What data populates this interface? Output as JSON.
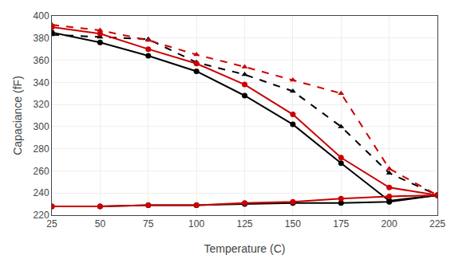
{
  "chart_data": {
    "type": "line",
    "xlabel": "Temperature (C)",
    "ylabel": "Capaciance (fF)",
    "x": [
      25,
      50,
      75,
      100,
      125,
      150,
      175,
      200,
      225
    ],
    "series": [
      {
        "color": "#000000",
        "line_style": "solid",
        "marker": "circle",
        "values": [
          385,
          376,
          364,
          350,
          328,
          302,
          267,
          233,
          238
        ]
      },
      {
        "color": "#000000",
        "line_style": "dashed",
        "marker": "triangle",
        "values": [
          383,
          381,
          379,
          358,
          347,
          332,
          300,
          258,
          238
        ]
      },
      {
        "color": "#cc0000",
        "line_style": "solid",
        "marker": "circle",
        "values": [
          390,
          384,
          370,
          357,
          338,
          311,
          272,
          245,
          238
        ]
      },
      {
        "color": "#cc0000",
        "line_style": "dashed",
        "marker": "triangle",
        "values": [
          392,
          387,
          378,
          365,
          354,
          342,
          330,
          262,
          238
        ]
      },
      {
        "color": "#000000",
        "line_style": "solid",
        "marker": "circle",
        "values": [
          228,
          228,
          229,
          229,
          230,
          231,
          231,
          232,
          238
        ]
      },
      {
        "color": "#cc0000",
        "line_style": "solid",
        "marker": "circle",
        "values": [
          228,
          228,
          229,
          229,
          231,
          232,
          235,
          237,
          238
        ]
      }
    ],
    "xlim": [
      25,
      225
    ],
    "ylim": [
      220,
      400
    ],
    "xticks": [
      25,
      50,
      75,
      100,
      125,
      150,
      175,
      200,
      225
    ],
    "yticks": [
      220,
      240,
      260,
      280,
      300,
      320,
      340,
      360,
      380,
      400
    ],
    "grid": true
  }
}
